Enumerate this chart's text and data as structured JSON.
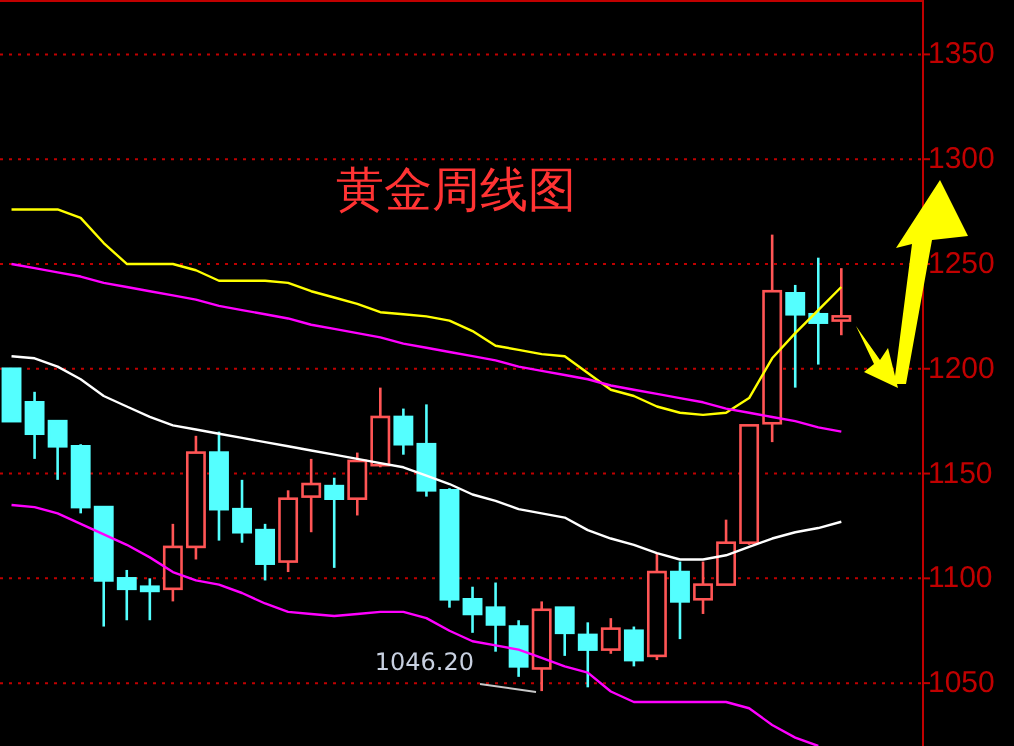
{
  "chart_data": {
    "type": "candlestick",
    "title": "黄金周线图",
    "categories": [
      null,
      null,
      null,
      null,
      null,
      null,
      null,
      null,
      null,
      null,
      null,
      null,
      null,
      null,
      null,
      null,
      null,
      null,
      null,
      null,
      null,
      null,
      null,
      null,
      null,
      null,
      null,
      null,
      null,
      null,
      null,
      null,
      null,
      null,
      null,
      null,
      null
    ],
    "ohlc": [
      [
        1200,
        1200,
        1175,
        1175
      ],
      [
        1184,
        1189,
        1157,
        1169
      ],
      [
        1175,
        1175,
        1147,
        1163
      ],
      [
        1163,
        1164,
        1131,
        1134
      ],
      [
        1134,
        1134,
        1077,
        1099
      ],
      [
        1100,
        1104,
        1080,
        1095
      ],
      [
        1096,
        1100,
        1080,
        1094
      ],
      [
        1095,
        1126,
        1089,
        1115
      ],
      [
        1115,
        1168,
        1109,
        1160
      ],
      [
        1160,
        1170,
        1118,
        1133
      ],
      [
        1133,
        1147,
        1117,
        1122
      ],
      [
        1123,
        1126,
        1099,
        1107
      ],
      [
        1108,
        1142,
        1103,
        1138
      ],
      [
        1139,
        1157,
        1122,
        1145
      ],
      [
        1144,
        1148,
        1105,
        1138
      ],
      [
        1138,
        1160,
        1130,
        1156
      ],
      [
        1154,
        1191,
        1153,
        1177
      ],
      [
        1177,
        1181,
        1159,
        1164
      ],
      [
        1164,
        1183,
        1139,
        1142
      ],
      [
        1142,
        1143,
        1086,
        1090
      ],
      [
        1090,
        1096,
        1074,
        1083
      ],
      [
        1086,
        1098,
        1065,
        1078
      ],
      [
        1077,
        1080,
        1053,
        1058
      ],
      [
        1057,
        1089,
        1046.2,
        1085
      ],
      [
        1086,
        1086,
        1063,
        1074
      ],
      [
        1073,
        1079,
        1048,
        1066
      ],
      [
        1066,
        1081,
        1064,
        1076
      ],
      [
        1075,
        1077,
        1058,
        1061
      ],
      [
        1063,
        1112,
        1061,
        1103
      ],
      [
        1103,
        1108,
        1071,
        1089
      ],
      [
        1090,
        1108,
        1083,
        1097
      ],
      [
        1097,
        1128,
        1097,
        1117
      ],
      [
        1117,
        1173,
        1116,
        1173
      ],
      [
        1174,
        1264,
        1165,
        1237
      ],
      [
        1236,
        1240,
        1191,
        1226
      ],
      [
        1226,
        1253,
        1202,
        1222
      ],
      [
        1223,
        1248,
        1216,
        1225
      ]
    ],
    "colors": [
      "#54ffff",
      "#54ffff",
      "#54ffff",
      "#54ffff",
      "#54ffff",
      "#54ffff",
      "#54ffff",
      "#ff5555",
      "#ff5555",
      "#54ffff",
      "#54ffff",
      "#54ffff",
      "#ff5555",
      "#ff5555",
      "#54ffff",
      "#ff5555",
      "#ff5555",
      "#54ffff",
      "#54ffff",
      "#54ffff",
      "#54ffff",
      "#54ffff",
      "#54ffff",
      "#ff5555",
      "#54ffff",
      "#54ffff",
      "#ff5555",
      "#54ffff",
      "#ff5555",
      "#54ffff",
      "#ff5555",
      "#ff5555",
      "#ff5555",
      "#ff5555",
      "#54ffff",
      "#54ffff",
      "#ff5555"
    ],
    "series": [
      {
        "type": "line",
        "color": "#ffff00",
        "values": [
          1276,
          1276,
          1276,
          1272,
          1260,
          1250,
          1250,
          1250,
          1247,
          1242,
          1242,
          1242,
          1241,
          1237,
          1234,
          1231,
          1227,
          1226,
          1225,
          1223,
          1218,
          1211,
          1209,
          1207,
          1206,
          1198,
          1190,
          1187,
          1182,
          1179,
          1178,
          1179,
          1186,
          1205,
          1217,
          1228,
          1239
        ]
      },
      {
        "type": "line",
        "color": "#ff00ff",
        "values": [
          1250,
          1248,
          1246,
          1244,
          1241,
          1239,
          1237,
          1235,
          1233,
          1230,
          1228,
          1226,
          1224,
          1221,
          1219,
          1217,
          1215,
          1212,
          1210,
          1208,
          1206,
          1204,
          1201,
          1199,
          1197,
          1195,
          1192,
          1190,
          1188,
          1186,
          1184,
          1181,
          1179,
          1177,
          1175,
          1172,
          1170
        ]
      },
      {
        "type": "line",
        "color": "#ffffff",
        "values": [
          1206,
          1205,
          1201,
          1195,
          1187,
          1182,
          1177,
          1173,
          1171,
          1169,
          1167,
          1165,
          1163,
          1161,
          1159,
          1157,
          1155,
          1153,
          1149,
          1145,
          1140,
          1137,
          1133,
          1131,
          1129,
          1123,
          1119,
          1116,
          1112,
          1109,
          1109,
          1111,
          1115,
          1119,
          1122,
          1124,
          1127
        ]
      },
      {
        "type": "line",
        "color": "#ff00ff",
        "values": [
          1135,
          1134,
          1131,
          1126,
          1121,
          1116,
          1110,
          1103,
          1099,
          1097,
          1093,
          1088,
          1084,
          1083,
          1082,
          1083,
          1084,
          1084,
          1081,
          1075,
          1070,
          1068,
          1066,
          1062,
          1058,
          1055,
          1046,
          1041,
          1041,
          1041,
          1041,
          1041,
          1038,
          1030,
          1024,
          1020,
          null
        ]
      }
    ],
    "ylim": [
      1020,
      1375
    ],
    "yticks": [
      1050,
      1100,
      1150,
      1200,
      1250,
      1300,
      1350
    ],
    "grid": "y",
    "annotations": [
      "1046.20"
    ]
  }
}
